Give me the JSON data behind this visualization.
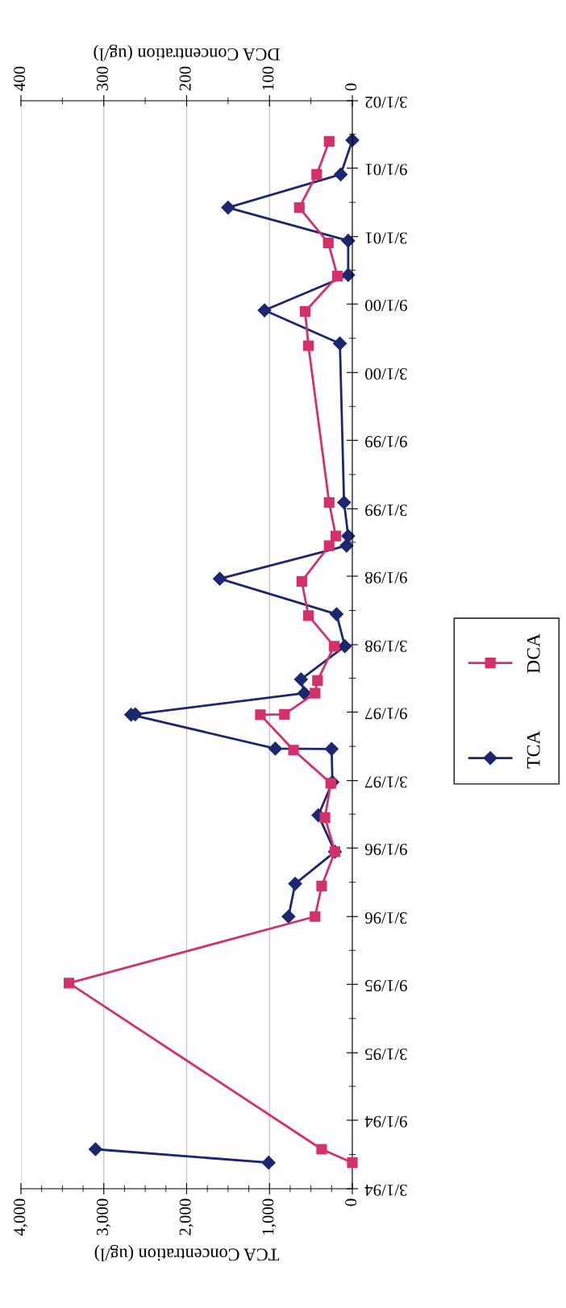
{
  "chart_data": {
    "type": "line",
    "orientation": "horizontal",
    "xlabel": "TCA Concentration (ug/l)",
    "x2label": "DCA Concentration (ug/l)",
    "ylim": [
      "1994-03-01",
      "2002-03-01"
    ],
    "yticks": [
      {
        "value": "1994-03-01",
        "label": "3/1/94"
      },
      {
        "value": "1994-06-01",
        "label": null
      },
      {
        "value": "1994-09-01",
        "label": "9/1/94"
      },
      {
        "value": "1994-12-01",
        "label": null
      },
      {
        "value": "1995-03-01",
        "label": "3/1/95"
      },
      {
        "value": "1995-06-01",
        "label": null
      },
      {
        "value": "1995-09-01",
        "label": "9/1/95"
      },
      {
        "value": "1995-12-01",
        "label": null
      },
      {
        "value": "1996-03-01",
        "label": "3/1/96"
      },
      {
        "value": "1996-06-01",
        "label": null
      },
      {
        "value": "1996-09-01",
        "label": "9/1/96"
      },
      {
        "value": "1996-12-01",
        "label": null
      },
      {
        "value": "1997-03-01",
        "label": "3/1/97"
      },
      {
        "value": "1997-06-01",
        "label": null
      },
      {
        "value": "1997-09-01",
        "label": "9/1/97"
      },
      {
        "value": "1997-12-01",
        "label": null
      },
      {
        "value": "1998-03-01",
        "label": "3/1/98"
      },
      {
        "value": "1998-06-01",
        "label": null
      },
      {
        "value": "1998-09-01",
        "label": "9/1/98"
      },
      {
        "value": "1998-12-01",
        "label": null
      },
      {
        "value": "1999-03-01",
        "label": "3/1/99"
      },
      {
        "value": "1999-06-01",
        "label": null
      },
      {
        "value": "1999-09-01",
        "label": "9/1/99"
      },
      {
        "value": "1999-12-01",
        "label": null
      },
      {
        "value": "2000-03-01",
        "label": "3/1/00"
      },
      {
        "value": "2000-06-01",
        "label": null
      },
      {
        "value": "2000-09-01",
        "label": "9/1/00"
      },
      {
        "value": "2000-12-01",
        "label": null
      },
      {
        "value": "2001-03-01",
        "label": "3/1/01"
      },
      {
        "value": "2001-06-01",
        "label": null
      },
      {
        "value": "2001-09-01",
        "label": "9/1/01"
      },
      {
        "value": "2001-12-01",
        "label": null
      },
      {
        "value": "2002-03-01",
        "label": "3/1/02"
      }
    ],
    "xlim": [
      4000,
      0
    ],
    "xticks": [
      0,
      {
        "value": 250,
        "label": null
      },
      {
        "value": 500,
        "label": null
      },
      {
        "value": 750,
        "label": null
      },
      {
        "value": 1000,
        "label": "1,000"
      },
      {
        "value": 1250,
        "label": null
      },
      {
        "value": 1500,
        "label": null
      },
      {
        "value": 1750,
        "label": null
      },
      {
        "value": 2000,
        "label": "2,000"
      },
      {
        "value": 2250,
        "label": null
      },
      {
        "value": 2500,
        "label": null
      },
      {
        "value": 2750,
        "label": null
      },
      {
        "value": 3000,
        "label": "3,000"
      },
      {
        "value": 3250,
        "label": null
      },
      {
        "value": 3500,
        "label": null
      },
      {
        "value": 3750,
        "label": null
      },
      {
        "value": 4000,
        "label": "4,000"
      }
    ],
    "x2lim": [
      400,
      0
    ],
    "x2ticks": [
      0,
      {
        "value": 50,
        "label": null
      },
      100,
      {
        "value": 150,
        "label": null
      },
      200,
      {
        "value": 250,
        "label": null
      },
      300,
      {
        "value": 350,
        "label": null
      },
      400
    ],
    "grid": "x",
    "legend": "right",
    "series": [
      {
        "name": "TCA",
        "color": "#1c2770",
        "marker": "diamond",
        "line_style": "solid",
        "x": [
          "1994-05-10",
          "1994-06-15",
          "1995-01-01",
          "1996-03-01",
          "1996-05-28",
          "1996-08-22",
          "1996-11-28",
          "1997-02-25",
          "1997-05-25",
          "1997-05-26",
          "1997-08-25",
          "1997-08-26",
          "1997-10-22",
          "1997-11-28",
          "1998-02-25",
          "1998-05-22",
          "1998-08-25",
          "1998-11-22",
          "1998-12-18",
          "1999-03-18",
          "2000-05-18",
          "2000-08-15",
          "2000-11-18",
          "2001-02-18",
          "2001-05-18",
          "2001-08-15",
          "2001-11-15"
        ],
        "values": [
          1010,
          3100,
          null,
          770,
          690,
          210,
          410,
          240,
          250,
          930,
          2670,
          2620,
          580,
          620,
          90,
          190,
          1600,
          70,
          50,
          100,
          150,
          1060,
          50,
          50,
          1500,
          140,
          0
        ]
      },
      {
        "name": "DCA",
        "color": "#d4306a",
        "marker": "square",
        "line_style": "solid",
        "axis": "x2",
        "x": [
          "1994-05-10",
          "1994-06-15",
          "1995-09-04",
          "1996-03-01",
          "1996-05-22",
          "1996-08-22",
          "1996-11-22",
          "1997-02-22",
          "1997-05-22",
          "1997-08-25",
          "1997-08-26",
          "1997-10-22",
          "1997-11-25",
          "1998-02-25",
          "1998-05-18",
          "1998-08-18",
          "1998-11-22",
          "1998-12-18",
          "1999-03-18",
          "2000-05-12",
          "2000-08-12",
          "2000-11-15",
          "2001-02-12",
          "2001-05-18",
          "2001-08-15",
          "2001-11-12"
        ],
        "values": [
          0,
          37,
          342,
          45,
          37,
          21,
          33,
          26,
          71,
          111,
          82,
          45,
          42,
          22,
          53,
          61,
          28,
          20,
          28,
          53,
          57,
          18,
          29,
          64,
          43,
          28
        ]
      }
    ]
  }
}
